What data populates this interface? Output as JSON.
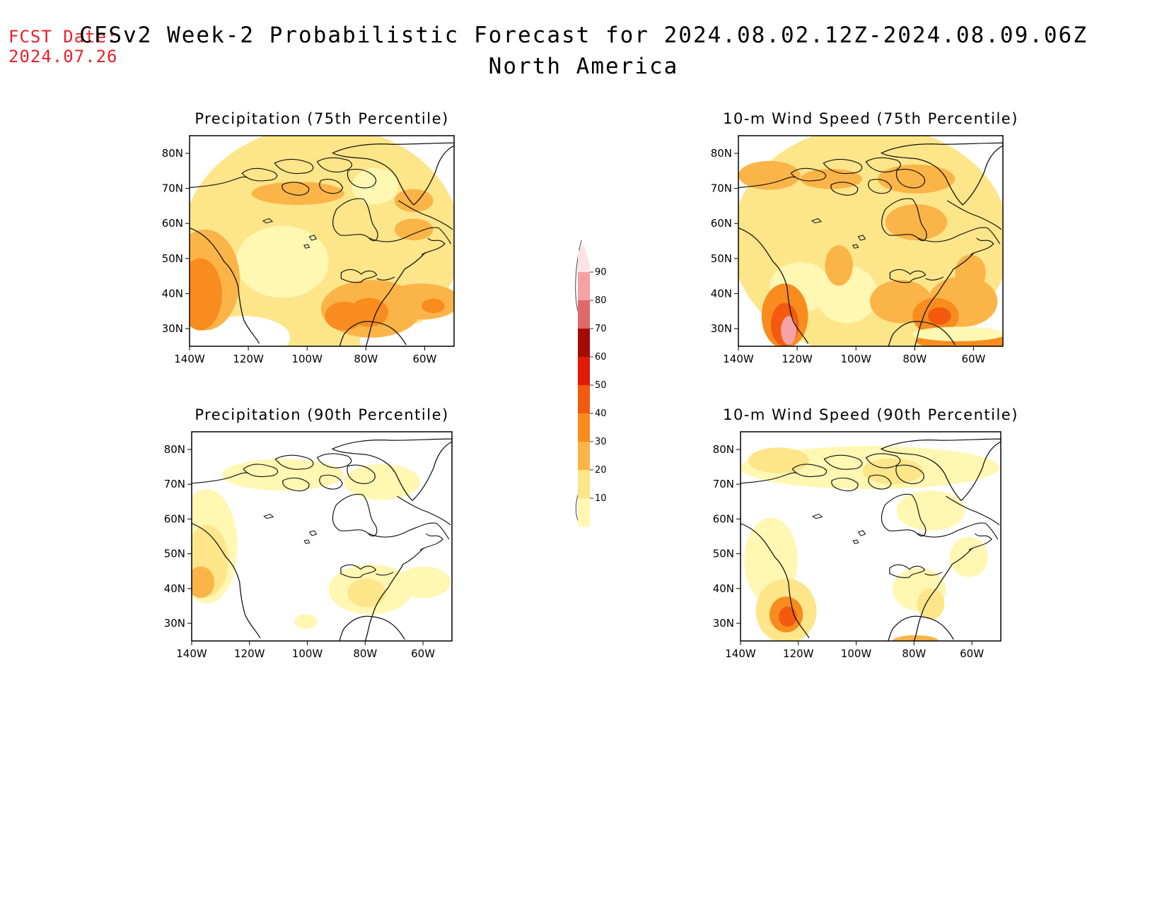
{
  "fcst_date": {
    "label": "FCST Date:",
    "value": "2024.07.26"
  },
  "title": {
    "main": "CFSv2 Week-2 Probabilistic Forecast for 2024.08.02.12Z-2024.08.09.06Z",
    "region": "North America"
  },
  "lat_ticks": [
    "80N",
    "70N",
    "60N",
    "50N",
    "40N",
    "30N"
  ],
  "lon_ticks": [
    "140W",
    "120W",
    "100W",
    "80W",
    "60W"
  ],
  "panels": [
    {
      "id": "precip75",
      "title": "Precipitation (75th Percentile)"
    },
    {
      "id": "wind75",
      "title": "10-m Wind Speed (75th Percentile)"
    },
    {
      "id": "precip90",
      "title": "Precipitation (90th Percentile)"
    },
    {
      "id": "wind90",
      "title": "10-m Wind Speed (90th Percentile)"
    }
  ],
  "colorbar": {
    "levels": [
      "10",
      "20",
      "30",
      "40",
      "50",
      "60",
      "70",
      "80",
      "90"
    ],
    "colors": [
      "#fff7b2",
      "#fde58a",
      "#fbb448",
      "#f98c1e",
      "#f35a10",
      "#e01a06",
      "#a30b04",
      "#e06868",
      "#f4a2a4",
      "#fde2e6"
    ]
  },
  "colors": {
    "fcst_date": "#e8202a"
  }
}
